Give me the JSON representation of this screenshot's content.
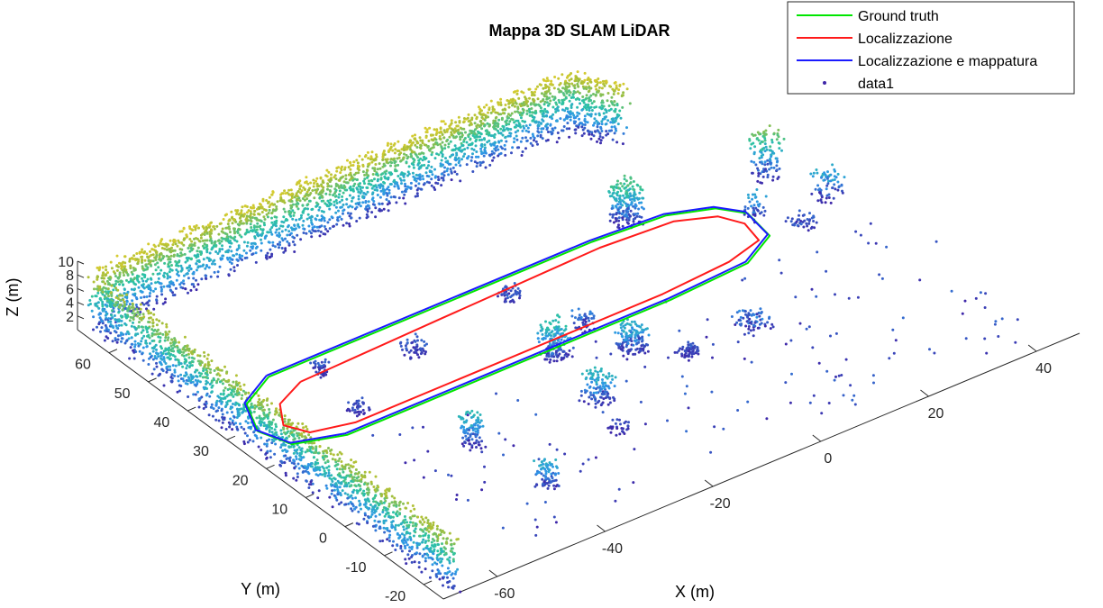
{
  "chart_data": {
    "type": "scatter",
    "title": "Mappa 3D SLAM LiDAR",
    "xlabel": "X (m)",
    "ylabel": "Y (m)",
    "zlabel": "Z (m)",
    "x_ticks": [
      "-60",
      "-40",
      "-20",
      "0",
      "20",
      "40"
    ],
    "y_ticks": [
      "-20",
      "-10",
      "0",
      "10",
      "20",
      "30",
      "40",
      "50",
      "60"
    ],
    "z_ticks": [
      "2",
      "4",
      "6",
      "8",
      "10"
    ],
    "xlim": [
      -70,
      48
    ],
    "ylim": [
      -25,
      68
    ],
    "zlim": [
      0,
      10
    ],
    "grid": false,
    "legend_position": "top-right",
    "colormap": [
      "#3e26a8",
      "#2f97e8",
      "#2bc3a3",
      "#a6be39",
      "#f9d528"
    ],
    "series": [
      {
        "name": "Ground truth",
        "kind": "line",
        "color": "#00e600",
        "x": [
          -55,
          -25,
          5,
          18,
          25,
          28,
          27,
          20,
          5,
          -25,
          -55,
          -63,
          -65,
          -62,
          -55
        ],
        "y": [
          40,
          40,
          40,
          39,
          36,
          32,
          25,
          21,
          20,
          20,
          20,
          23,
          29,
          36,
          40
        ]
      },
      {
        "name": "Localizzazione",
        "kind": "line",
        "color": "#ff1a1a",
        "x": [
          -52,
          -25,
          5,
          18,
          24,
          26,
          25,
          18,
          5,
          -25,
          -52,
          -59,
          -61,
          -58,
          -52
        ],
        "y": [
          36,
          37,
          38,
          37,
          34,
          30,
          25,
          23,
          22,
          22,
          22,
          24,
          28,
          33,
          36
        ]
      },
      {
        "name": "Localizzazione e mappatura",
        "kind": "line",
        "color": "#1a1aff",
        "x": [
          -55,
          -25,
          5,
          18,
          25,
          28,
          27,
          20,
          5,
          -25,
          -55,
          -63,
          -65,
          -62,
          -55
        ],
        "y": [
          40.5,
          40.5,
          40.5,
          39.5,
          36.5,
          32.5,
          25.5,
          21.5,
          20.5,
          20.5,
          20.5,
          23.5,
          29.5,
          36.5,
          40.5
        ]
      },
      {
        "name": "data1",
        "kind": "points",
        "color": "#3e26a8"
      }
    ]
  }
}
